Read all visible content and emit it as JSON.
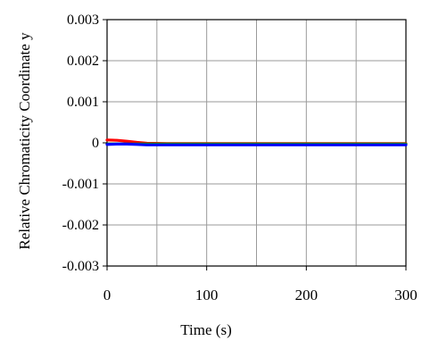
{
  "chart_data": {
    "type": "line",
    "title": "",
    "xlabel": "Time (s)",
    "ylabel": "Relative Chromaticity Coordinate y",
    "xlim": [
      0,
      300
    ],
    "ylim": [
      -0.003,
      0.003
    ],
    "grid": true,
    "legend": "none",
    "x_ticks": [
      0,
      100,
      200,
      300
    ],
    "x_tick_labels": [
      "0",
      "100",
      "200",
      "300"
    ],
    "y_ticks": [
      -0.003,
      -0.002,
      -0.001,
      0,
      0.001,
      0.002,
      0.003
    ],
    "y_tick_labels": [
      "-0.003",
      "-0.002",
      "-0.001",
      "0",
      "0.001",
      "0.002",
      "0.003"
    ],
    "series": [
      {
        "color": "#ff0000",
        "x": [
          0,
          10,
          20,
          30,
          40,
          60,
          100,
          150,
          200,
          250,
          300
        ],
        "y": [
          7e-05,
          6e-05,
          4e-05,
          1e-05,
          -1e-05,
          -2e-05,
          -2e-05,
          -2e-05,
          -2e-05,
          -2e-05,
          -2e-05
        ]
      },
      {
        "color": "#00a000",
        "x": [
          0,
          20,
          40,
          60,
          100,
          150,
          200,
          250,
          300
        ],
        "y": [
          -3e-05,
          -3e-05,
          -3e-05,
          -3e-05,
          -3e-05,
          -3e-05,
          -3e-05,
          -3e-05,
          -3e-05
        ]
      },
      {
        "color": "#0000ff",
        "x": [
          0,
          10,
          20,
          30,
          40,
          60,
          100,
          150,
          200,
          250,
          300
        ],
        "y": [
          -4e-05,
          -3e-05,
          -3e-05,
          -4e-05,
          -5e-05,
          -5e-05,
          -5e-05,
          -5e-05,
          -5e-05,
          -5e-05,
          -5e-05
        ]
      }
    ]
  }
}
